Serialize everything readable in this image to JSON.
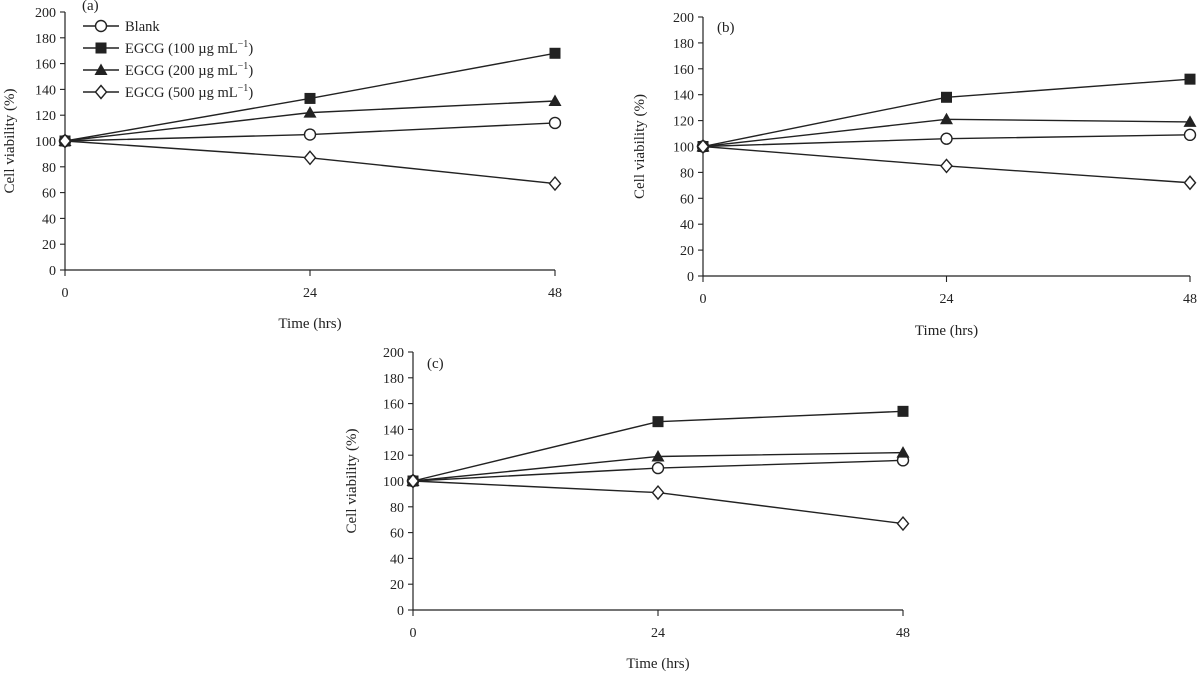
{
  "legend": [
    {
      "series": "Blank",
      "main": "Blank",
      "sup": ""
    },
    {
      "series": "EGCG (100 µg mL⁻¹)",
      "main": "EGCG (100 µg mL",
      "sup": "−1",
      "close": ")"
    },
    {
      "series": "EGCG (200 µg mL⁻¹)",
      "main": "EGCG (200 µg mL",
      "sup": "−1",
      "close": ")"
    },
    {
      "series": "EGCG (500 µg mL⁻¹)",
      "main": "EGCG (500 µg mL",
      "sup": "−1",
      "close": ")"
    }
  ],
  "chart_data": [
    {
      "type": "line",
      "panel_label": "(a)",
      "xlabel": "Time (hrs)",
      "ylabel": "Cell viability (%)",
      "x": [
        0,
        24,
        48
      ],
      "xticks": [
        "0",
        "24",
        "48"
      ],
      "ylim": [
        0,
        200
      ],
      "yticks": [
        "0",
        "20",
        "40",
        "60",
        "80",
        "100",
        "120",
        "140",
        "160",
        "180",
        "200"
      ],
      "series": [
        {
          "name": "Blank",
          "marker": "open-circle",
          "values": [
            100,
            105,
            114
          ]
        },
        {
          "name": "EGCG (100 µg mL⁻¹)",
          "marker": "filled-square",
          "values": [
            100,
            133,
            168
          ]
        },
        {
          "name": "EGCG (200 µg mL⁻¹)",
          "marker": "filled-triangle",
          "values": [
            100,
            122,
            131
          ]
        },
        {
          "name": "EGCG (500 µg mL⁻¹)",
          "marker": "open-diamond",
          "values": [
            100,
            87,
            67
          ]
        }
      ],
      "grid": false,
      "legend_position": "top-left"
    },
    {
      "type": "line",
      "panel_label": "(b)",
      "xlabel": "Time (hrs)",
      "ylabel": "Cell viability (%)",
      "x": [
        0,
        24,
        48
      ],
      "xticks": [
        "0",
        "24",
        "48"
      ],
      "ylim": [
        0,
        200
      ],
      "yticks": [
        "0",
        "20",
        "40",
        "60",
        "80",
        "100",
        "120",
        "140",
        "160",
        "180",
        "200"
      ],
      "series": [
        {
          "name": "Blank",
          "marker": "open-circle",
          "values": [
            100,
            106,
            109
          ]
        },
        {
          "name": "EGCG (100 µg mL⁻¹)",
          "marker": "filled-square",
          "values": [
            100,
            138,
            152
          ]
        },
        {
          "name": "EGCG (200 µg mL⁻¹)",
          "marker": "filled-triangle",
          "values": [
            100,
            121,
            119
          ]
        },
        {
          "name": "EGCG (500 µg mL⁻¹)",
          "marker": "open-diamond",
          "values": [
            100,
            85,
            72
          ]
        }
      ],
      "grid": false
    },
    {
      "type": "line",
      "panel_label": "(c)",
      "xlabel": "Time (hrs)",
      "ylabel": "Cell viability (%)",
      "x": [
        0,
        24,
        48
      ],
      "xticks": [
        "0",
        "24",
        "48"
      ],
      "ylim": [
        0,
        200
      ],
      "yticks": [
        "0",
        "20",
        "40",
        "60",
        "80",
        "100",
        "120",
        "140",
        "160",
        "180",
        "200"
      ],
      "series": [
        {
          "name": "Blank",
          "marker": "open-circle",
          "values": [
            100,
            110,
            116
          ]
        },
        {
          "name": "EGCG (100 µg mL⁻¹)",
          "marker": "filled-square",
          "values": [
            100,
            146,
            154
          ]
        },
        {
          "name": "EGCG (200 µg mL⁻¹)",
          "marker": "filled-triangle",
          "values": [
            100,
            119,
            122
          ]
        },
        {
          "name": "EGCG (500 µg mL⁻¹)",
          "marker": "open-diamond",
          "values": [
            100,
            91,
            67
          ]
        }
      ],
      "grid": false
    }
  ]
}
